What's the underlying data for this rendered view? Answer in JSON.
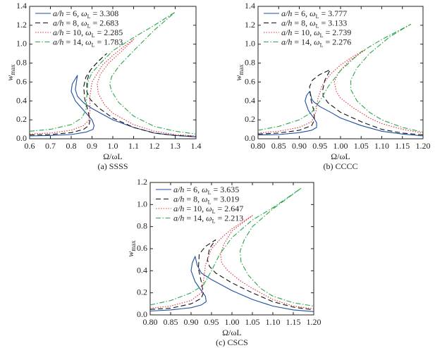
{
  "chart_data": [
    {
      "type": "line",
      "caption": "(a) SSSS",
      "xlabel": "Ω/ωL",
      "ylabel": "wmax",
      "xlim": [
        0.6,
        1.4
      ],
      "ylim": [
        0,
        1.4
      ],
      "xticks": [
        "0.6",
        "0.7",
        "0.8",
        "0.9",
        "1.0",
        "1.1",
        "1.2",
        "1.3",
        "1.4"
      ],
      "yticks": [
        "0.0",
        "0.2",
        "0.4",
        "0.6",
        "0.8",
        "1.0",
        "1.2",
        "1.4"
      ],
      "legend_position": "top-left",
      "grid": false,
      "series": [
        {
          "name": "a/h = 6, ωL = 3.308",
          "ah": "6",
          "omega": "3.308",
          "color": "#1f4ea0",
          "style": "solid",
          "x": [
            0.6,
            0.7,
            0.8,
            0.87,
            0.905,
            0.91,
            0.9,
            0.86,
            0.82,
            0.8,
            0.805,
            0.83,
            0.825,
            0.82,
            0.83,
            0.86,
            0.9,
            0.95,
            1.0,
            1.1,
            1.2,
            1.3,
            1.4
          ],
          "y": [
            0.03,
            0.035,
            0.045,
            0.07,
            0.1,
            0.14,
            0.2,
            0.3,
            0.4,
            0.5,
            0.58,
            0.67,
            0.6,
            0.52,
            0.45,
            0.38,
            0.32,
            0.26,
            0.2,
            0.12,
            0.06,
            0.035,
            0.02
          ]
        },
        {
          "name": "a/h = 8, ωL = 2.683",
          "ah": "8",
          "omega": "2.683",
          "color": "#111111",
          "style": "dashed",
          "x": [
            0.6,
            0.7,
            0.8,
            0.86,
            0.885,
            0.89,
            0.88,
            0.865,
            0.86,
            0.87,
            0.9,
            0.95,
            0.97,
            0.93,
            0.89,
            0.875,
            0.875,
            0.89,
            0.93,
            1.0,
            1.1,
            1.2,
            1.3,
            1.4
          ],
          "y": [
            0.04,
            0.045,
            0.065,
            0.1,
            0.14,
            0.2,
            0.3,
            0.42,
            0.55,
            0.65,
            0.75,
            0.86,
            0.9,
            0.82,
            0.72,
            0.6,
            0.5,
            0.42,
            0.33,
            0.22,
            0.12,
            0.06,
            0.035,
            0.025
          ]
        },
        {
          "name": "a/h = 10, ωL = 2.285",
          "ah": "10",
          "omega": "2.285",
          "color": "#e0303a",
          "style": "dotted",
          "x": [
            0.6,
            0.7,
            0.8,
            0.86,
            0.885,
            0.89,
            0.89,
            0.9,
            0.95,
            1.0,
            1.05,
            1.1,
            1.04,
            0.98,
            0.94,
            0.925,
            0.93,
            0.96,
            1.0,
            1.1,
            1.2,
            1.3,
            1.4
          ],
          "y": [
            0.05,
            0.06,
            0.09,
            0.14,
            0.2,
            0.3,
            0.45,
            0.6,
            0.78,
            0.88,
            0.97,
            1.05,
            0.92,
            0.8,
            0.68,
            0.58,
            0.48,
            0.36,
            0.27,
            0.15,
            0.08,
            0.045,
            0.03
          ]
        },
        {
          "name": "a/h = 14, ωL = 1.783",
          "ah": "14",
          "omega": "1.783",
          "color": "#2aa84a",
          "style": "dashdot",
          "x": [
            0.6,
            0.7,
            0.8,
            0.85,
            0.87,
            0.875,
            0.88,
            0.9,
            0.95,
            1.0,
            1.1,
            1.2,
            1.3,
            1.2,
            1.1,
            1.03,
            0.995,
            0.985,
            0.995,
            1.03,
            1.1,
            1.2,
            1.3,
            1.4
          ],
          "y": [
            0.08,
            0.1,
            0.15,
            0.22,
            0.3,
            0.45,
            0.6,
            0.7,
            0.82,
            0.93,
            1.07,
            1.2,
            1.34,
            1.15,
            0.93,
            0.77,
            0.66,
            0.58,
            0.5,
            0.38,
            0.24,
            0.13,
            0.08,
            0.05
          ]
        }
      ]
    },
    {
      "type": "line",
      "caption": "(b) CCCC",
      "xlabel": "Ω/ωL",
      "ylabel": "wmax",
      "xlim": [
        0.8,
        1.2
      ],
      "ylim": [
        0,
        1.4
      ],
      "xticks": [
        "0.80",
        "0.85",
        "0.90",
        "0.95",
        "1.00",
        "1.05",
        "1.10",
        "1.15",
        "1.20"
      ],
      "yticks": [
        "0.0",
        "0.2",
        "0.4",
        "0.6",
        "0.8",
        "1.0",
        "1.2",
        "1.4"
      ],
      "legend_position": "top-left",
      "grid": false,
      "series": [
        {
          "name": "a/h = 6, ωL = 3.777",
          "ah": "6",
          "omega": "3.777",
          "color": "#1f4ea0",
          "style": "solid",
          "x": [
            0.8,
            0.85,
            0.9,
            0.93,
            0.942,
            0.942,
            0.935,
            0.922,
            0.914,
            0.918,
            0.925,
            0.928,
            0.93,
            0.935,
            0.95,
            0.98,
            1.0,
            1.05,
            1.1,
            1.15,
            1.2
          ],
          "y": [
            0.04,
            0.045,
            0.065,
            0.09,
            0.12,
            0.17,
            0.22,
            0.3,
            0.4,
            0.46,
            0.5,
            0.46,
            0.42,
            0.39,
            0.34,
            0.27,
            0.22,
            0.14,
            0.08,
            0.05,
            0.03
          ]
        },
        {
          "name": "a/h = 8, ωL = 3.133",
          "ah": "8",
          "omega": "3.133",
          "color": "#111111",
          "style": "dashed",
          "x": [
            0.8,
            0.85,
            0.9,
            0.93,
            0.937,
            0.935,
            0.928,
            0.925,
            0.932,
            0.95,
            0.975,
            0.962,
            0.957,
            0.958,
            0.97,
            1.0,
            1.05,
            1.1,
            1.15,
            1.2
          ],
          "y": [
            0.05,
            0.06,
            0.09,
            0.14,
            0.2,
            0.3,
            0.42,
            0.55,
            0.62,
            0.68,
            0.73,
            0.62,
            0.52,
            0.45,
            0.38,
            0.28,
            0.18,
            0.1,
            0.06,
            0.04
          ]
        },
        {
          "name": "a/h = 10, ωL = 2.739",
          "ah": "10",
          "omega": "2.739",
          "color": "#e0303a",
          "style": "dotted",
          "x": [
            0.8,
            0.85,
            0.9,
            0.93,
            0.94,
            0.945,
            0.955,
            0.975,
            1.0,
            1.03,
            1.06,
            1.02,
            0.995,
            0.985,
            0.99,
            1.0,
            1.03,
            1.07,
            1.1,
            1.15,
            1.2
          ],
          "y": [
            0.06,
            0.08,
            0.12,
            0.18,
            0.28,
            0.42,
            0.56,
            0.68,
            0.78,
            0.87,
            0.94,
            0.82,
            0.7,
            0.6,
            0.5,
            0.43,
            0.33,
            0.22,
            0.16,
            0.1,
            0.06
          ]
        },
        {
          "name": "a/h = 14, ωL = 2.276",
          "ah": "14",
          "omega": "2.276",
          "color": "#2aa84a",
          "style": "dashdot",
          "x": [
            0.8,
            0.85,
            0.9,
            0.93,
            0.95,
            0.97,
            1.0,
            1.05,
            1.1,
            1.17,
            1.12,
            1.07,
            1.04,
            1.025,
            1.025,
            1.04,
            1.07,
            1.1,
            1.15,
            1.2
          ],
          "y": [
            0.09,
            0.13,
            0.2,
            0.28,
            0.4,
            0.55,
            0.72,
            0.92,
            1.05,
            1.21,
            1.08,
            0.9,
            0.75,
            0.62,
            0.52,
            0.4,
            0.28,
            0.2,
            0.12,
            0.07
          ]
        }
      ]
    },
    {
      "type": "line",
      "caption": "(c) CSCS",
      "xlabel": "Ω/ωL",
      "ylabel": "wmax",
      "xlim": [
        0.8,
        1.2
      ],
      "ylim": [
        0,
        1.2
      ],
      "xticks": [
        "0.80",
        "0.85",
        "0.90",
        "0.95",
        "1.00",
        "1.05",
        "1.10",
        "1.15",
        "1.20"
      ],
      "yticks": [
        "0.0",
        "0.2",
        "0.4",
        "0.6",
        "0.8",
        "1.0",
        "1.2"
      ],
      "legend_position": "top-left",
      "grid": false,
      "series": [
        {
          "name": "a/h = 6, ωL = 3.635",
          "ah": "6",
          "omega": "3.635",
          "color": "#1f4ea0",
          "style": "solid",
          "x": [
            0.8,
            0.85,
            0.9,
            0.925,
            0.937,
            0.935,
            0.925,
            0.91,
            0.9,
            0.903,
            0.91,
            0.915,
            0.925,
            0.95,
            1.0,
            1.05,
            1.1,
            1.15,
            1.2
          ],
          "y": [
            0.035,
            0.045,
            0.065,
            0.09,
            0.12,
            0.17,
            0.22,
            0.3,
            0.4,
            0.47,
            0.53,
            0.45,
            0.38,
            0.32,
            0.22,
            0.14,
            0.08,
            0.045,
            0.03
          ]
        },
        {
          "name": "a/h = 8, ωL = 3.019",
          "ah": "8",
          "omega": "3.019",
          "color": "#111111",
          "style": "dashed",
          "x": [
            0.8,
            0.85,
            0.9,
            0.925,
            0.93,
            0.925,
            0.918,
            0.92,
            0.935,
            0.96,
            0.945,
            0.94,
            0.945,
            0.96,
            1.0,
            1.05,
            1.1,
            1.15,
            1.2
          ],
          "y": [
            0.05,
            0.06,
            0.1,
            0.15,
            0.2,
            0.3,
            0.42,
            0.55,
            0.62,
            0.68,
            0.6,
            0.5,
            0.44,
            0.38,
            0.29,
            0.2,
            0.12,
            0.07,
            0.045
          ]
        },
        {
          "name": "a/h = 10, ωL = 2.647",
          "ah": "10",
          "omega": "2.647",
          "color": "#e0303a",
          "style": "dotted",
          "x": [
            0.8,
            0.85,
            0.9,
            0.925,
            0.93,
            0.935,
            0.95,
            0.975,
            1.0,
            1.05,
            1.0,
            0.98,
            0.972,
            0.975,
            0.99,
            1.02,
            1.05,
            1.1,
            1.15,
            1.2
          ],
          "y": [
            0.06,
            0.08,
            0.13,
            0.2,
            0.3,
            0.45,
            0.6,
            0.7,
            0.78,
            0.9,
            0.76,
            0.64,
            0.55,
            0.47,
            0.4,
            0.31,
            0.24,
            0.14,
            0.08,
            0.055
          ]
        },
        {
          "name": "a/h = 14, ωL = 2.213",
          "ah": "14",
          "omega": "2.213",
          "color": "#2aa84a",
          "style": "dashdot",
          "x": [
            0.8,
            0.85,
            0.9,
            0.93,
            0.95,
            0.97,
            1.0,
            1.05,
            1.1,
            1.17,
            1.1,
            1.05,
            1.03,
            1.02,
            1.022,
            1.04,
            1.07,
            1.1,
            1.15,
            1.2
          ],
          "y": [
            0.09,
            0.13,
            0.2,
            0.27,
            0.4,
            0.55,
            0.7,
            0.86,
            0.97,
            1.15,
            0.96,
            0.8,
            0.68,
            0.58,
            0.48,
            0.36,
            0.24,
            0.17,
            0.11,
            0.08
          ]
        }
      ]
    }
  ]
}
